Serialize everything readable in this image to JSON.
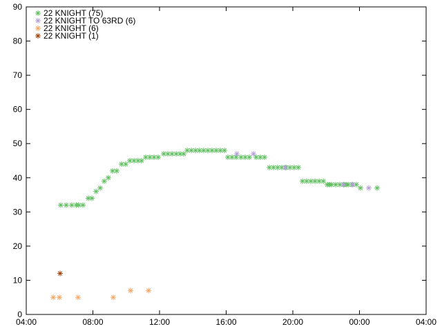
{
  "chart_data": {
    "type": "scatter",
    "xlim": [
      4,
      28
    ],
    "xticks": [
      {
        "value": 4,
        "label": "04:00"
      },
      {
        "value": 8,
        "label": "08:00"
      },
      {
        "value": 12,
        "label": "12:00"
      },
      {
        "value": 16,
        "label": "16:00"
      },
      {
        "value": 20,
        "label": "20:00"
      },
      {
        "value": 24,
        "label": "00:00"
      },
      {
        "value": 28,
        "label": "04:00"
      }
    ],
    "ylim": [
      0,
      90
    ],
    "yticks": [
      0,
      10,
      20,
      30,
      40,
      50,
      60,
      70,
      80,
      90
    ],
    "legend": "upper-left",
    "series": [
      {
        "name": "22 KNIGHT (75)",
        "color": "#5fbf5f",
        "x": [
          6.07,
          6.4,
          6.73,
          7.0,
          7.15,
          7.4,
          7.73,
          7.94,
          8.19,
          8.44,
          8.68,
          8.93,
          9.18,
          9.43,
          9.72,
          9.97,
          10.22,
          10.47,
          10.71,
          10.92,
          11.17,
          11.42,
          11.67,
          11.92,
          12.25,
          12.5,
          12.75,
          13.0,
          13.24,
          13.45,
          13.66,
          13.91,
          14.16,
          14.4,
          14.65,
          14.9,
          15.15,
          15.4,
          15.65,
          15.9,
          16.1,
          16.35,
          16.6,
          16.89,
          17.14,
          17.39,
          17.8,
          18.05,
          18.3,
          18.59,
          18.84,
          19.09,
          19.34,
          19.59,
          19.83,
          20.08,
          20.33,
          20.58,
          20.83,
          21.08,
          21.33,
          21.58,
          21.83,
          22.07,
          22.2,
          22.32,
          22.57,
          22.82,
          23.07,
          23.2,
          23.32,
          23.56,
          23.81,
          24.06,
          25.06
        ],
        "values": [
          32,
          32,
          32,
          32,
          32,
          32,
          34,
          34,
          36,
          37,
          39,
          40,
          42,
          42,
          44,
          44,
          45,
          45,
          45,
          45,
          46,
          46,
          46,
          46,
          47,
          47,
          47,
          47,
          47,
          47,
          48,
          48,
          48,
          48,
          48,
          48,
          48,
          48,
          48,
          48,
          46,
          46,
          46,
          46,
          46,
          46,
          46,
          46,
          46,
          43,
          43,
          43,
          43,
          43,
          43,
          43,
          43,
          39,
          39,
          39,
          39,
          39,
          39,
          38,
          38,
          38,
          38,
          38,
          38,
          38,
          38,
          38,
          38,
          37,
          37
        ]
      },
      {
        "name": "22 KNIGHT TO 63RD (6)",
        "color": "#b39ddb",
        "x": [
          16.64,
          17.64,
          19.54,
          23.03,
          23.6,
          24.56
        ],
        "values": [
          47,
          47,
          43,
          38,
          38,
          37
        ]
      },
      {
        "name": "22 KNIGHT (6)",
        "color": "#f5a662",
        "x": [
          5.62,
          5.99,
          7.11,
          9.22,
          10.26,
          11.34
        ],
        "values": [
          5,
          5,
          5,
          5,
          7,
          7
        ]
      },
      {
        "name": "22 KNIGHT (1)",
        "color": "#a0400a",
        "x": [
          6.03
        ],
        "values": [
          12
        ]
      }
    ]
  }
}
